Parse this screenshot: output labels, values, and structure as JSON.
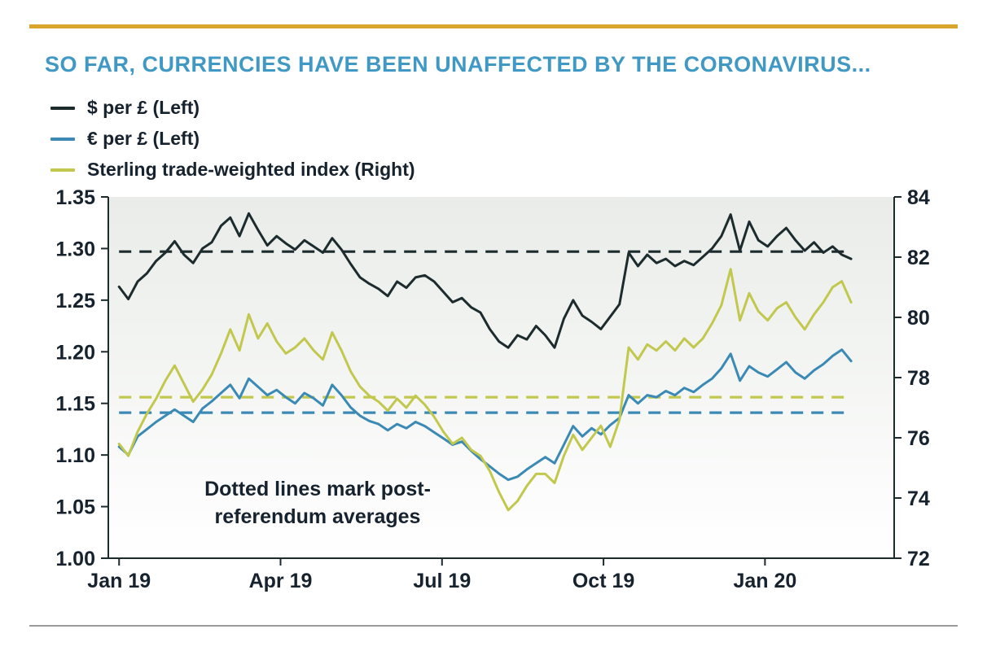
{
  "title": "SO FAR, CURRENCIES HAVE BEEN UNAFFECTED BY THE CORONAVIRUS...",
  "legend": [
    {
      "id": "usd",
      "label": "$ per £ (Left)",
      "color": "#1c2b2e"
    },
    {
      "id": "eur",
      "label": "€ per £ (Left)",
      "color": "#3a8ab5"
    },
    {
      "id": "twi",
      "label": "Sterling trade-weighted index (Right)",
      "color": "#c2c84d"
    }
  ],
  "annotation": {
    "line1": "Dotted lines mark post-",
    "line2": "referendum averages"
  },
  "colors": {
    "title": "#3f99c4",
    "top_rule": "#d9a62b",
    "bottom_rule": "#9b9b9b",
    "axis": "#1c2b2e",
    "text": "#16222e",
    "plot_gradient_top": "#e9ece8",
    "plot_gradient_bottom": "#ffffff"
  },
  "chart_data": {
    "type": "line",
    "title": "SO FAR, CURRENCIES HAVE BEEN UNAFFECTED BY THE CORONAVIRUS...",
    "x_unit": "months since Jan 2019",
    "x_domain": [
      -0.2,
      14.4
    ],
    "x_ticks": [
      {
        "pos": 0,
        "label": "Jan 19"
      },
      {
        "pos": 3,
        "label": "Apr 19"
      },
      {
        "pos": 6,
        "label": "Jul 19"
      },
      {
        "pos": 9,
        "label": "Oct 19"
      },
      {
        "pos": 12,
        "label": "Jan 20"
      }
    ],
    "left_axis": {
      "min": 1.0,
      "max": 1.35,
      "ticks": [
        1.0,
        1.05,
        1.1,
        1.15,
        1.2,
        1.25,
        1.3,
        1.35
      ]
    },
    "right_axis": {
      "min": 72,
      "max": 84,
      "ticks": [
        72,
        74,
        76,
        78,
        80,
        82,
        84
      ]
    },
    "dashed_note": "dashed horizontal lines mark post-referendum averages",
    "series": [
      {
        "id": "usd",
        "name": "$ per £",
        "axis": "left",
        "color": "#1c2b2e",
        "average_dashed": 1.297,
        "x_start": 0,
        "x_end": 13.6,
        "values": [
          1.263,
          1.251,
          1.268,
          1.276,
          1.288,
          1.296,
          1.307,
          1.294,
          1.286,
          1.3,
          1.306,
          1.322,
          1.33,
          1.312,
          1.334,
          1.318,
          1.303,
          1.312,
          1.305,
          1.299,
          1.308,
          1.302,
          1.296,
          1.31,
          1.299,
          1.285,
          1.272,
          1.266,
          1.261,
          1.254,
          1.268,
          1.262,
          1.272,
          1.274,
          1.268,
          1.258,
          1.248,
          1.252,
          1.243,
          1.238,
          1.222,
          1.21,
          1.204,
          1.216,
          1.212,
          1.225,
          1.216,
          1.204,
          1.232,
          1.25,
          1.235,
          1.229,
          1.222,
          1.234,
          1.246,
          1.296,
          1.283,
          1.294,
          1.286,
          1.29,
          1.283,
          1.288,
          1.284,
          1.292,
          1.3,
          1.312,
          1.333,
          1.298,
          1.326,
          1.308,
          1.302,
          1.312,
          1.32,
          1.308,
          1.298,
          1.306,
          1.296,
          1.302,
          1.294,
          1.29
        ]
      },
      {
        "id": "eur",
        "name": "€ per £",
        "axis": "left",
        "color": "#3a8ab5",
        "average_dashed": 1.141,
        "x_start": 0,
        "x_end": 13.6,
        "values": [
          1.108,
          1.1,
          1.118,
          1.125,
          1.132,
          1.138,
          1.144,
          1.138,
          1.132,
          1.145,
          1.152,
          1.16,
          1.168,
          1.155,
          1.174,
          1.166,
          1.158,
          1.163,
          1.156,
          1.15,
          1.16,
          1.155,
          1.148,
          1.168,
          1.158,
          1.146,
          1.138,
          1.133,
          1.13,
          1.124,
          1.13,
          1.126,
          1.132,
          1.128,
          1.122,
          1.116,
          1.11,
          1.113,
          1.104,
          1.096,
          1.089,
          1.082,
          1.076,
          1.079,
          1.086,
          1.092,
          1.098,
          1.092,
          1.11,
          1.128,
          1.118,
          1.126,
          1.12,
          1.129,
          1.136,
          1.158,
          1.15,
          1.158,
          1.156,
          1.162,
          1.158,
          1.165,
          1.161,
          1.168,
          1.174,
          1.184,
          1.198,
          1.172,
          1.186,
          1.18,
          1.176,
          1.183,
          1.19,
          1.18,
          1.174,
          1.182,
          1.188,
          1.196,
          1.202,
          1.191
        ]
      },
      {
        "id": "twi",
        "name": "Sterling trade-weighted index",
        "axis": "right",
        "color": "#c2c84d",
        "average_dashed": 77.35,
        "x_start": 0,
        "x_end": 13.6,
        "values": [
          75.8,
          75.4,
          76.2,
          76.8,
          77.3,
          77.9,
          78.4,
          77.8,
          77.2,
          77.6,
          78.1,
          78.8,
          79.6,
          78.9,
          80.1,
          79.3,
          79.8,
          79.2,
          78.8,
          79.0,
          79.3,
          78.9,
          78.6,
          79.5,
          78.9,
          78.2,
          77.7,
          77.4,
          77.2,
          76.9,
          77.3,
          77.0,
          77.4,
          77.1,
          76.7,
          76.2,
          75.8,
          76.0,
          75.6,
          75.4,
          74.9,
          74.2,
          73.6,
          73.9,
          74.4,
          74.8,
          74.8,
          74.5,
          75.4,
          76.1,
          75.6,
          76.0,
          76.4,
          75.7,
          76.6,
          79.0,
          78.6,
          79.1,
          78.9,
          79.2,
          78.9,
          79.3,
          79.0,
          79.3,
          79.8,
          80.4,
          81.6,
          79.9,
          80.8,
          80.2,
          79.9,
          80.3,
          80.5,
          80.0,
          79.6,
          80.1,
          80.5,
          81.0,
          81.2,
          80.5
        ]
      }
    ]
  }
}
